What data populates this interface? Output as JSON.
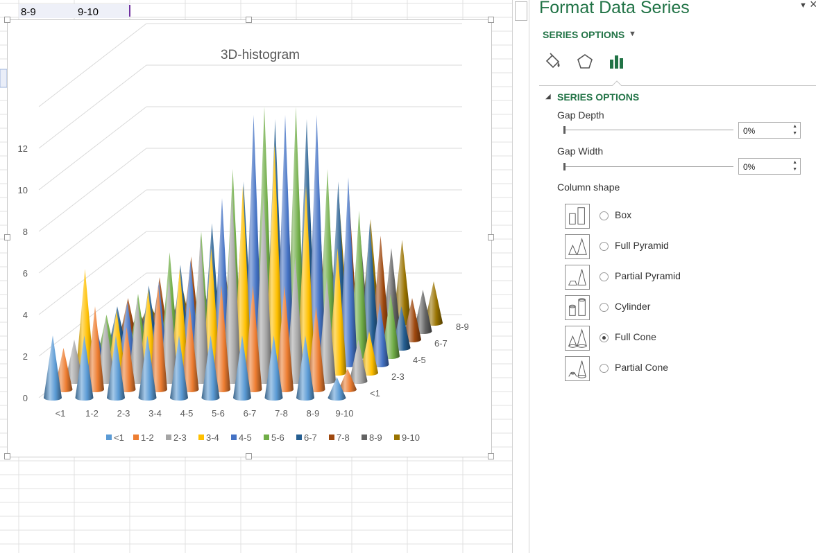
{
  "spreadsheet": {
    "visible_cells": [
      "8-9",
      "9-10"
    ]
  },
  "chart_data": {
    "type": "bar",
    "subtype": "3d-column-full-cone",
    "title": "3D-histogram",
    "categories": [
      "<1",
      "1-2",
      "2-3",
      "3-4",
      "4-5",
      "5-6",
      "6-7",
      "7-8",
      "8-9",
      "9-10"
    ],
    "depth_axis_labels": [
      "<1",
      "2-3",
      "4-5",
      "6-7",
      "8-9"
    ],
    "ylim": [
      0,
      12
    ],
    "y_ticks": [
      "0",
      "2",
      "4",
      "6",
      "8",
      "10",
      "12"
    ],
    "legend_position": "bottom",
    "series": [
      {
        "name": "<1",
        "color": "#5b9bd5",
        "values": [
          3,
          3,
          3,
          3,
          3,
          3,
          3,
          3,
          3,
          1
        ]
      },
      {
        "name": "1-2",
        "color": "#ed7d31",
        "values": [
          2,
          4,
          3,
          5,
          4,
          5,
          5,
          5,
          4,
          1
        ]
      },
      {
        "name": "2-3",
        "color": "#a5a5a5",
        "values": [
          2,
          3,
          4,
          5,
          7,
          9,
          9,
          6,
          5,
          2
        ]
      },
      {
        "name": "3-4",
        "color": "#ffc000",
        "values": [
          5,
          3,
          4,
          5,
          6,
          9,
          11,
          9,
          6,
          2
        ]
      },
      {
        "name": "4-5",
        "color": "#4472c4",
        "values": [
          2,
          3,
          4,
          5,
          8,
          12,
          12,
          12,
          9,
          3
        ]
      },
      {
        "name": "5-6",
        "color": "#70ad47",
        "values": [
          2,
          3,
          5,
          6,
          9,
          12,
          12,
          9,
          7,
          3
        ]
      },
      {
        "name": "6-7",
        "color": "#255e91",
        "values": [
          2,
          3,
          4,
          6,
          8,
          11,
          11,
          8,
          6,
          2
        ]
      },
      {
        "name": "7-8",
        "color": "#9e480e",
        "values": [
          2,
          3,
          4,
          5,
          7,
          8,
          8,
          7,
          5,
          2
        ]
      },
      {
        "name": "8-9",
        "color": "#636363",
        "values": [
          1,
          2,
          3,
          4,
          5,
          6,
          6,
          5,
          4,
          2
        ]
      },
      {
        "name": "9-10",
        "color": "#997300",
        "values": [
          1,
          2,
          3,
          4,
          5,
          6,
          6,
          5,
          4,
          2
        ]
      }
    ]
  },
  "format_pane": {
    "title": "Format Data Series",
    "series_options_menu": "SERIES OPTIONS",
    "tabs": [
      {
        "icon": "fill-line-icon"
      },
      {
        "icon": "effects-icon"
      },
      {
        "icon": "series-options-icon",
        "selected": true
      }
    ],
    "section_header": "SERIES OPTIONS",
    "gap_depth": {
      "label": "Gap Depth",
      "value": "0%",
      "level": 0
    },
    "gap_width": {
      "label": "Gap Width",
      "value": "0%",
      "level": 0
    },
    "column_shape_label": "Column shape",
    "shapes": [
      {
        "label": "Box",
        "icon": "box-shape-icon",
        "selected": false
      },
      {
        "label": "Full Pyramid",
        "icon": "full-pyramid-shape-icon",
        "selected": false
      },
      {
        "label": "Partial Pyramid",
        "icon": "partial-pyramid-shape-icon",
        "selected": false
      },
      {
        "label": "Cylinder",
        "icon": "cylinder-shape-icon",
        "selected": false
      },
      {
        "label": "Full Cone",
        "icon": "full-cone-shape-icon",
        "selected": true
      },
      {
        "label": "Partial Cone",
        "icon": "partial-cone-shape-icon",
        "selected": false
      }
    ]
  }
}
